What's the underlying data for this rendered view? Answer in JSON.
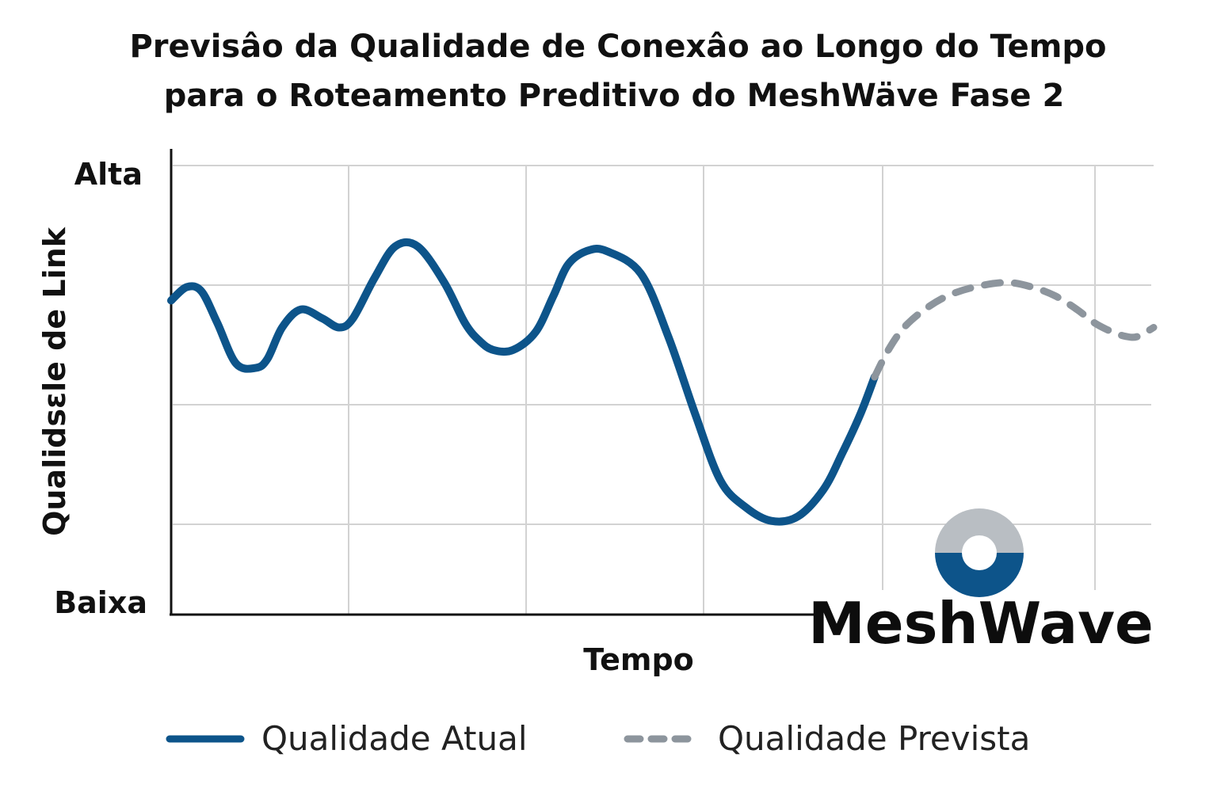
{
  "chart_data": {
    "type": "line",
    "title": "Previsâo da Qualidade de Conexâo ao Longo do Tempo para o Roteamento Preditivo do MeshWäve Fase 2",
    "title_lines": [
      "Previsâo da Qualidade de Conexâo ao Longo do Tempo",
      "para o Roteamento Preditivo do MeshWäve Fase 2"
    ],
    "xlabel": "Tempo",
    "ylabel": "Qualidsɛle de Link",
    "y_tick_labels": {
      "high": "Alta",
      "low": "Baixa"
    },
    "xlim": [
      0,
      100
    ],
    "ylim": [
      0,
      100
    ],
    "grid": true,
    "legend_position": "bottom",
    "series": [
      {
        "name": "Qualidade Atual",
        "style": "solid",
        "color": "#0d548a",
        "x": [
          0,
          1.6,
          3.1,
          4.7,
          6.6,
          8.6,
          9.8,
          11.3,
          13.2,
          15.4,
          17.1,
          18.5,
          20.7,
          22.8,
          25.1,
          27.8,
          29.9,
          31.4,
          32.8,
          34.8,
          37.1,
          38.9,
          40.4,
          42.3,
          44.3,
          47.8,
          50.6,
          53.3,
          55.9,
          58.5,
          61.1,
          63.8,
          66.4,
          68.3,
          70.2,
          71.6
        ],
        "y": [
          70,
          73,
          72,
          65,
          56,
          55,
          57,
          64,
          68,
          66,
          64,
          66,
          75,
          82,
          82,
          74,
          65,
          61,
          59,
          59,
          63,
          71,
          78,
          81,
          81,
          76,
          62,
          45,
          30,
          24,
          21,
          22,
          28,
          36,
          45,
          53
        ]
      },
      {
        "name": "Qualidade Prevista",
        "style": "dashed",
        "color": "#8d959d",
        "x": [
          71.6,
          73.0,
          74.6,
          76.7,
          79.0,
          81.8,
          85.0,
          87.6,
          90.0,
          92.2,
          94.0,
          95.8,
          97.2,
          98.4,
          100
        ],
        "y": [
          53,
          59,
          64,
          68,
          71,
          73,
          74,
          73,
          71,
          68,
          65,
          63,
          62,
          62,
          64
        ]
      }
    ],
    "legend": [
      {
        "label": "Qualidade Atual",
        "style": "solid",
        "color": "#0d548a"
      },
      {
        "label": "Qualidade Prevista",
        "style": "dashed",
        "color": "#8d959d"
      }
    ]
  },
  "logo": {
    "text": "MeshWave",
    "color_top": "#b9bec3",
    "color_bottom": "#0d548a"
  }
}
